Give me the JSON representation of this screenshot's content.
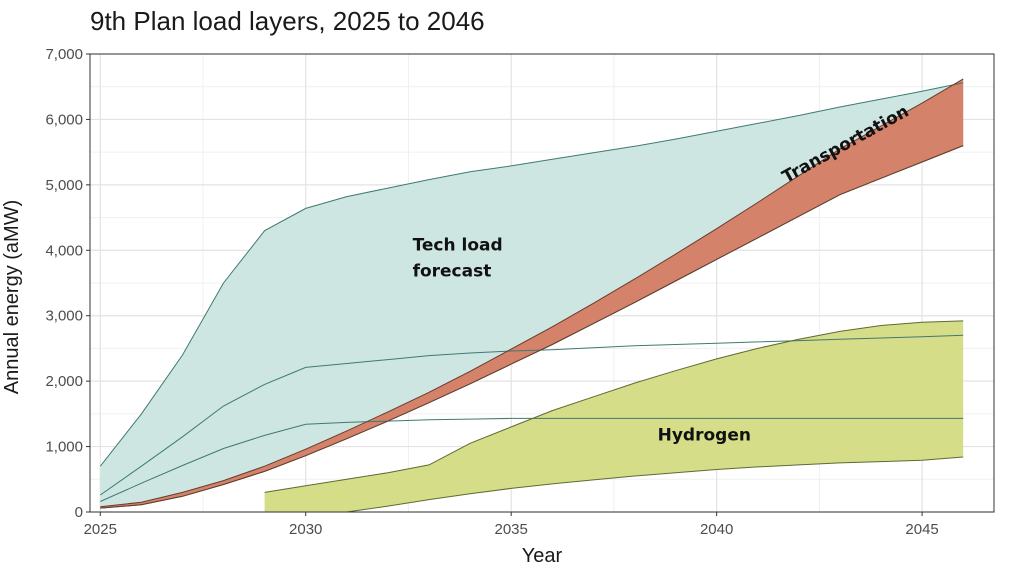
{
  "chart_data": {
    "type": "area",
    "title": "9th Plan load layers, 2025 to 2046",
    "xlabel": "Year",
    "ylabel": "Annual energy (aMW)",
    "xlim": [
      2024.75,
      2046.75
    ],
    "ylim": [
      0,
      7000
    ],
    "x_ticks": [
      2025,
      2030,
      2035,
      2040,
      2045
    ],
    "x_tick_labels": [
      "2025",
      "2030",
      "2035",
      "2040",
      "2045"
    ],
    "y_ticks": [
      0,
      1000,
      2000,
      3000,
      4000,
      5000,
      6000,
      7000
    ],
    "y_tick_labels": [
      "0",
      "1,000",
      "2,000",
      "3,000",
      "4,000",
      "5,000",
      "6,000",
      "7,000"
    ],
    "grid": true,
    "series": [
      {
        "name": "Tech load forecast",
        "label": "Tech load\nforecast",
        "color": "#cde6e2",
        "line_color": "#3f7a70",
        "upper": [
          [
            2025,
            700
          ],
          [
            2026,
            1500
          ],
          [
            2027,
            2400
          ],
          [
            2028,
            3500
          ],
          [
            2029,
            4300
          ],
          [
            2030,
            4640
          ],
          [
            2031,
            4820
          ],
          [
            2032,
            4950
          ],
          [
            2033,
            5080
          ],
          [
            2034,
            5200
          ],
          [
            2035,
            5290
          ],
          [
            2036,
            5390
          ],
          [
            2037,
            5490
          ],
          [
            2038,
            5590
          ],
          [
            2039,
            5700
          ],
          [
            2040,
            5820
          ],
          [
            2041,
            5940
          ],
          [
            2042,
            6060
          ],
          [
            2043,
            6190
          ],
          [
            2044,
            6310
          ],
          [
            2045,
            6430
          ],
          [
            2046,
            6560
          ]
        ],
        "lower": [
          [
            2025,
            60
          ],
          [
            2026,
            110
          ],
          [
            2027,
            240
          ],
          [
            2028,
            420
          ],
          [
            2029,
            620
          ],
          [
            2030,
            860
          ],
          [
            2031,
            1120
          ],
          [
            2032,
            1390
          ],
          [
            2033,
            1670
          ],
          [
            2034,
            1960
          ],
          [
            2035,
            2260
          ],
          [
            2036,
            2560
          ],
          [
            2037,
            2880
          ],
          [
            2038,
            3200
          ],
          [
            2039,
            3530
          ],
          [
            2040,
            3860
          ],
          [
            2041,
            4190
          ],
          [
            2042,
            4520
          ],
          [
            2043,
            4850
          ],
          [
            2044,
            5100
          ],
          [
            2045,
            5350
          ],
          [
            2046,
            5600
          ]
        ],
        "inner_lines": [
          [
            [
              2025,
              260
            ],
            [
              2026,
              700
            ],
            [
              2027,
              1150
            ],
            [
              2028,
              1620
            ],
            [
              2029,
              1950
            ],
            [
              2030,
              2210
            ],
            [
              2031,
              2270
            ],
            [
              2032,
              2330
            ],
            [
              2033,
              2390
            ],
            [
              2034,
              2430
            ],
            [
              2035,
              2460
            ],
            [
              2036,
              2480
            ],
            [
              2037,
              2510
            ],
            [
              2038,
              2540
            ],
            [
              2039,
              2560
            ],
            [
              2040,
              2580
            ],
            [
              2041,
              2600
            ],
            [
              2042,
              2620
            ],
            [
              2043,
              2640
            ],
            [
              2044,
              2660
            ],
            [
              2045,
              2680
            ],
            [
              2046,
              2700
            ]
          ],
          [
            [
              2025,
              160
            ],
            [
              2026,
              440
            ],
            [
              2027,
              710
            ],
            [
              2028,
              970
            ],
            [
              2029,
              1170
            ],
            [
              2030,
              1340
            ],
            [
              2031,
              1370
            ],
            [
              2032,
              1390
            ],
            [
              2033,
              1410
            ],
            [
              2034,
              1420
            ],
            [
              2035,
              1430
            ],
            [
              2036,
              1430
            ],
            [
              2037,
              1430
            ],
            [
              2038,
              1430
            ],
            [
              2039,
              1430
            ],
            [
              2040,
              1430
            ],
            [
              2041,
              1430
            ],
            [
              2042,
              1430
            ],
            [
              2043,
              1430
            ],
            [
              2044,
              1430
            ],
            [
              2045,
              1430
            ],
            [
              2046,
              1430
            ]
          ]
        ]
      },
      {
        "name": "Transportation",
        "label": "Transportation",
        "color": "#d4826a",
        "line_color": "#6a3b2c",
        "upper": [
          [
            2025,
            80
          ],
          [
            2026,
            150
          ],
          [
            2027,
            300
          ],
          [
            2028,
            480
          ],
          [
            2029,
            700
          ],
          [
            2030,
            960
          ],
          [
            2031,
            1240
          ],
          [
            2032,
            1530
          ],
          [
            2033,
            1830
          ],
          [
            2034,
            2150
          ],
          [
            2035,
            2490
          ],
          [
            2036,
            2830
          ],
          [
            2037,
            3190
          ],
          [
            2038,
            3560
          ],
          [
            2039,
            3940
          ],
          [
            2040,
            4330
          ],
          [
            2041,
            4730
          ],
          [
            2042,
            5140
          ],
          [
            2043,
            5550
          ],
          [
            2044,
            5900
          ],
          [
            2045,
            6250
          ],
          [
            2046,
            6620
          ]
        ],
        "lower": [
          [
            2025,
            60
          ],
          [
            2026,
            110
          ],
          [
            2027,
            240
          ],
          [
            2028,
            420
          ],
          [
            2029,
            620
          ],
          [
            2030,
            860
          ],
          [
            2031,
            1120
          ],
          [
            2032,
            1390
          ],
          [
            2033,
            1670
          ],
          [
            2034,
            1960
          ],
          [
            2035,
            2260
          ],
          [
            2036,
            2560
          ],
          [
            2037,
            2880
          ],
          [
            2038,
            3200
          ],
          [
            2039,
            3530
          ],
          [
            2040,
            3860
          ],
          [
            2041,
            4190
          ],
          [
            2042,
            4520
          ],
          [
            2043,
            4850
          ],
          [
            2044,
            5100
          ],
          [
            2045,
            5350
          ],
          [
            2046,
            5600
          ]
        ]
      },
      {
        "name": "Hydrogen",
        "label": "Hydrogen",
        "color": "#d5dd88",
        "line_color": "#5e6a33",
        "upper": [
          [
            2029,
            300
          ],
          [
            2030,
            400
          ],
          [
            2031,
            500
          ],
          [
            2032,
            600
          ],
          [
            2033,
            720
          ],
          [
            2034,
            1050
          ],
          [
            2035,
            1300
          ],
          [
            2036,
            1550
          ],
          [
            2037,
            1760
          ],
          [
            2038,
            1970
          ],
          [
            2039,
            2160
          ],
          [
            2040,
            2340
          ],
          [
            2041,
            2500
          ],
          [
            2042,
            2640
          ],
          [
            2043,
            2760
          ],
          [
            2044,
            2850
          ],
          [
            2045,
            2900
          ],
          [
            2046,
            2920
          ]
        ],
        "lower": [
          [
            2029,
            0
          ],
          [
            2030,
            0
          ],
          [
            2031,
            0
          ],
          [
            2032,
            90
          ],
          [
            2033,
            190
          ],
          [
            2034,
            280
          ],
          [
            2035,
            360
          ],
          [
            2036,
            430
          ],
          [
            2037,
            490
          ],
          [
            2038,
            550
          ],
          [
            2039,
            600
          ],
          [
            2040,
            650
          ],
          [
            2041,
            690
          ],
          [
            2042,
            720
          ],
          [
            2043,
            750
          ],
          [
            2044,
            770
          ],
          [
            2045,
            790
          ],
          [
            2046,
            840
          ]
        ]
      }
    ]
  }
}
